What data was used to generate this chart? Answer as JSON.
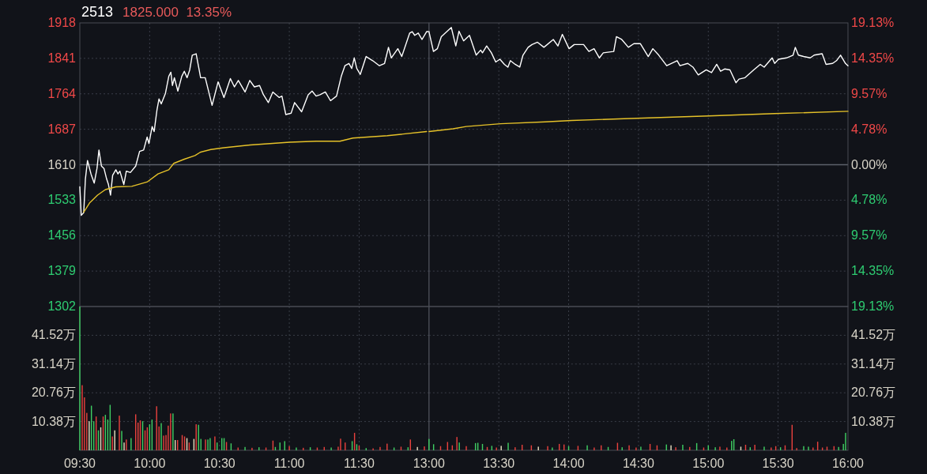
{
  "chart_data": [
    {
      "type": "line",
      "title": "2513",
      "subtitle": "1825.000  13.35%",
      "series": [
        {
          "color": "#ffffff",
          "x": [
            9.5,
            9.51,
            9.528,
            9.54,
            9.555,
            9.58,
            9.603,
            9.623,
            9.637,
            9.655,
            9.673,
            9.692,
            9.705,
            9.72,
            9.735,
            9.758,
            9.773,
            9.787,
            9.815,
            9.833,
            9.862,
            9.9,
            9.928,
            9.957,
            9.982,
            9.995,
            10.018,
            10.032,
            10.052,
            10.067,
            10.083,
            10.113,
            10.137,
            10.152,
            10.163,
            10.177,
            10.202,
            10.23,
            10.248,
            10.268,
            10.287,
            10.305,
            10.333,
            10.365,
            10.398,
            10.447,
            10.49,
            10.532,
            10.578,
            10.607,
            10.635,
            10.683,
            10.717,
            10.75,
            10.787,
            10.815,
            10.85,
            10.882,
            10.928,
            10.947,
            10.975,
            11.013,
            11.038,
            11.088,
            11.135,
            11.163,
            11.192,
            11.22,
            11.258,
            11.295,
            11.338,
            11.372,
            11.398,
            11.427,
            11.447,
            11.465,
            11.483,
            11.508,
            11.55,
            11.597,
            11.645,
            11.682,
            11.71,
            11.73,
            11.777,
            11.805,
            11.862,
            11.88,
            11.898,
            11.923,
            11.95,
            11.983,
            12
          ],
          "values": [
            1562,
            1500,
            1506,
            1579,
            1619,
            1590,
            1570,
            1602,
            1642,
            1607,
            1602,
            1579,
            1567,
            1544,
            1587,
            1599,
            1590,
            1596,
            1567,
            1596,
            1593,
            1607,
            1639,
            1642,
            1670,
            1656,
            1693,
            1682,
            1728,
            1753,
            1742,
            1765,
            1802,
            1811,
            1782,
            1799,
            1770,
            1802,
            1813,
            1799,
            1816,
            1848,
            1851,
            1799,
            1799,
            1739,
            1790,
            1756,
            1797,
            1779,
            1793,
            1768,
            1793,
            1779,
            1782,
            1762,
            1745,
            1768,
            1756,
            1759,
            1719,
            1722,
            1745,
            1725,
            1762,
            1770,
            1759,
            1762,
            1768,
            1749,
            1759,
            1802,
            1825,
            1830,
            1819,
            1842,
            1819,
            1806,
            1845,
            1836,
            1825,
            1830,
            1865,
            1842,
            1862,
            1845,
            1896,
            1899,
            1891,
            1896,
            1882,
            1899,
            1899
          ]
        },
        {
          "color": "#e6c229",
          "x": [
            9.528,
            9.57,
            9.627,
            9.683,
            9.758,
            9.872,
            9.985,
            10.06,
            10.137,
            10.173,
            10.248,
            10.325,
            10.362,
            10.438,
            10.532,
            10.72,
            11.003,
            11.192,
            11.362,
            11.455,
            11.702,
            11.983
          ],
          "values": [
            1507,
            1527,
            1544,
            1556,
            1562,
            1563,
            1573,
            1590,
            1599,
            1613,
            1622,
            1630,
            1637,
            1643,
            1647,
            1653,
            1659,
            1661,
            1661,
            1668,
            1673,
            1682
          ]
        }
      ],
      "xlim": [
        9.5,
        12
      ],
      "xticks": [
        9.5,
        10,
        10.5,
        11,
        11.5
      ],
      "ylim": [
        1302,
        1918
      ],
      "yticks": [
        1302,
        1379,
        1456,
        1533,
        1610,
        1687,
        1764,
        1841,
        1918
      ],
      "tick_labels": "y",
      "grid": true,
      "ref_lines": [
        {
          "axis": "y",
          "value": 1610
        }
      ]
    },
    {
      "type": "line",
      "series": [
        {
          "color": "#ffffff",
          "x": [
            13,
            13.032,
            13.06,
            13.088,
            13.117,
            13.16,
            13.192,
            13.215,
            13.248,
            13.29,
            13.338,
            13.37,
            13.383,
            13.413,
            13.447,
            13.478,
            13.508,
            13.54,
            13.565,
            13.583,
            13.617,
            13.65,
            13.673,
            13.71,
            13.738,
            13.777,
            13.823,
            13.89,
            13.923,
            13.955,
            14.003,
            14.04,
            14.107,
            14.145,
            14.182,
            14.22,
            14.248,
            14.323,
            14.342,
            14.38,
            14.428,
            14.467,
            14.513,
            14.57,
            14.603,
            14.645,
            14.702,
            14.777,
            14.797,
            14.853,
            14.89,
            14.928,
            14.985,
            15.023,
            15.06,
            15.088,
            15.117,
            15.155,
            15.198,
            15.22,
            15.263,
            15.325,
            15.372,
            15.4,
            15.457,
            15.475,
            15.503,
            15.56,
            15.607,
            15.623,
            15.645,
            15.682,
            15.73,
            15.758,
            15.815,
            15.843,
            15.89,
            15.918,
            15.947,
            15.982,
            16
          ],
          "values": [
            1899,
            1856,
            1862,
            1888,
            1896,
            1908,
            1868,
            1900,
            1879,
            1891,
            1848,
            1859,
            1853,
            1868,
            1853,
            1833,
            1839,
            1828,
            1822,
            1836,
            1828,
            1822,
            1848,
            1865,
            1871,
            1876,
            1865,
            1882,
            1868,
            1893,
            1862,
            1871,
            1871,
            1856,
            1862,
            1842,
            1853,
            1856,
            1888,
            1882,
            1865,
            1873,
            1873,
            1845,
            1862,
            1848,
            1825,
            1836,
            1825,
            1830,
            1822,
            1805,
            1816,
            1810,
            1828,
            1813,
            1818,
            1816,
            1788,
            1796,
            1799,
            1816,
            1828,
            1822,
            1842,
            1830,
            1839,
            1842,
            1848,
            1865,
            1848,
            1845,
            1842,
            1848,
            1851,
            1828,
            1830,
            1836,
            1848,
            1830,
            1825
          ]
        },
        {
          "color": "#e6c229",
          "x": [
            13,
            13.173,
            13.267,
            13.512,
            13.833,
            14.022,
            14.398,
            15.003,
            15.475,
            16
          ],
          "values": [
            1682,
            1688,
            1693,
            1699,
            1703,
            1706,
            1710,
            1716,
            1721,
            1726
          ]
        }
      ],
      "xlim": [
        13,
        16
      ],
      "xticks": [
        13,
        13.5,
        14,
        14.5,
        15,
        15.5,
        16
      ],
      "ylim": [
        1302,
        1918
      ],
      "y2lim": [
        -19.13,
        19.13
      ],
      "y2ticks": [
        {
          "value": -19.13,
          "label": "19.13%"
        },
        {
          "value": -14.35,
          "label": "14.35%"
        },
        {
          "value": -9.57,
          "label": "9.57%"
        },
        {
          "value": -4.78,
          "label": "4.78%"
        },
        {
          "value": 0,
          "label": "0.00%"
        },
        {
          "value": 4.78,
          "label": "4.78%"
        },
        {
          "value": 9.57,
          "label": "9.57%"
        },
        {
          "value": 14.35,
          "label": "14.35%"
        },
        {
          "value": 19.13,
          "label": "19.13%"
        }
      ],
      "tick_labels": "y",
      "grid": true,
      "ref_lines": [
        {
          "axis": "y",
          "value": 1610
        }
      ]
    },
    {
      "type": "bar",
      "x": [
        9.5,
        9.517,
        9.533,
        9.55,
        9.567,
        9.583,
        9.6,
        9.617,
        9.633,
        9.65,
        9.667,
        9.683,
        9.7,
        9.717,
        9.733,
        9.75,
        9.783,
        9.8,
        9.817,
        9.833,
        9.867,
        9.9,
        9.917,
        9.933,
        9.95,
        9.967,
        9.983,
        10,
        10.017,
        10.05,
        10.067,
        10.083,
        10.1,
        10.117,
        10.133,
        10.15,
        10.167,
        10.183,
        10.2,
        10.233,
        10.25,
        10.267,
        10.283,
        10.317,
        10.333,
        10.35,
        10.367,
        10.4,
        10.417,
        10.433,
        10.467,
        10.483,
        10.517,
        10.533,
        10.55,
        10.583,
        10.633,
        10.683,
        10.733,
        10.783,
        10.833,
        10.883,
        10.9,
        10.933,
        10.967,
        11,
        11.05,
        11.1,
        11.15,
        11.2,
        11.25,
        11.3,
        11.35,
        11.367,
        11.4,
        11.45,
        11.467,
        11.483,
        11.5,
        11.55,
        11.6,
        11.65,
        11.7,
        11.75,
        11.8,
        11.85,
        11.867,
        11.917,
        11.967
      ],
      "values": [
        51.9,
        23.5,
        19.1,
        13.5,
        10.5,
        16.1,
        10.5,
        12.2,
        7.2,
        8.3,
        12.2,
        12.8,
        11.1,
        16.4,
        5.0,
        7.2,
        12.5,
        7.0,
        2.8,
        3.9,
        4.4,
        13.0,
        10.0,
        10.8,
        10.5,
        7.2,
        8.3,
        9.4,
        11.1,
        15.9,
        8.6,
        9.8,
        5.3,
        5.5,
        8.9,
        13.3,
        13.3,
        3.7,
        3.7,
        5.5,
        5.0,
        4.4,
        2.8,
        4.1,
        9.4,
        9.2,
        4.1,
        3.9,
        3.9,
        4.4,
        5.0,
        2.8,
        4.4,
        4.4,
        3.0,
        2.5,
        1.0,
        1.2,
        0.9,
        1.1,
        1.0,
        3.5,
        1.2,
        2.8,
        3.3,
        1.5,
        1.0,
        0.9,
        1.1,
        1.0,
        1.2,
        1.0,
        1.3,
        4.2,
        2.8,
        3.3,
        6.3,
        2.2,
        1.7,
        0.8,
        0.7,
        1.2,
        2.4,
        1.0,
        1.3,
        1.1,
        3.9,
        1.2,
        1.4
      ],
      "colors": [
        "#3fcf63",
        "#e8413d",
        "#e8413d",
        "#e8413d",
        "#e8e0c0",
        "#3fcf63",
        "#3fcf63",
        "#e8413d",
        "#3fcf63",
        "#e8e0c0",
        "#e8413d",
        "#3fcf63",
        "#3fcf63",
        "#3fcf63",
        "#e8413d",
        "#e8e0c0",
        "#e8413d",
        "#3fcf63",
        "#e8e0c0",
        "#e8413d",
        "#3fcf63",
        "#e8413d",
        "#e8413d",
        "#e8413d",
        "#3fcf63",
        "#e8413d",
        "#e8413d",
        "#3fcf63",
        "#3fcf63",
        "#e8413d",
        "#e8413d",
        "#3fcf63",
        "#e8413d",
        "#e8413d",
        "#e8413d",
        "#e8413d",
        "#3fcf63",
        "#e8e0c0",
        "#e8413d",
        "#e8413d",
        "#e8413d",
        "#e8e0c0",
        "#e8413d",
        "#e8e0c0",
        "#e8413d",
        "#3fcf63",
        "#3fcf63",
        "#e8413d",
        "#3fcf63",
        "#3fcf63",
        "#e8413d",
        "#3fcf63",
        "#3fcf63",
        "#3fcf63",
        "#e8413d",
        "#3fcf63",
        "#e8413d",
        "#3fcf63",
        "#e8413d",
        "#3fcf63",
        "#e8413d",
        "#e8413d",
        "#3fcf63",
        "#3fcf63",
        "#3fcf63",
        "#e8413d",
        "#3fcf63",
        "#e8413d",
        "#3fcf63",
        "#e8413d",
        "#e8413d",
        "#3fcf63",
        "#e8413d",
        "#e8413d",
        "#e8413d",
        "#3fcf63",
        "#e8413d",
        "#3fcf63",
        "#e8413d",
        "#3fcf63",
        "#e8413d",
        "#e8413d",
        "#e8413d",
        "#3fcf63",
        "#e8413d",
        "#3fcf63",
        "#e8413d",
        "#e8e0c0",
        "#e8413d"
      ],
      "xlim": [
        9.5,
        12
      ],
      "xticks": [
        {
          "value": 9.5,
          "label": "09:30"
        },
        {
          "value": 10,
          "label": "10:00"
        },
        {
          "value": 10.5,
          "label": "10:30"
        },
        {
          "value": 11,
          "label": "11:00"
        },
        {
          "value": 11.5,
          "label": "11:30"
        }
      ],
      "ylim": [
        0,
        51.9
      ],
      "yticks": [
        {
          "value": 10.38,
          "label": "10.38万"
        },
        {
          "value": 20.76,
          "label": "20.76万"
        },
        {
          "value": 31.14,
          "label": "31.14万"
        },
        {
          "value": 41.52,
          "label": "41.52万"
        }
      ],
      "grid": true
    },
    {
      "type": "bar",
      "x": [
        13,
        13.033,
        13.083,
        13.133,
        13.167,
        13.2,
        13.217,
        13.267,
        13.333,
        13.35,
        13.383,
        13.417,
        13.45,
        13.483,
        13.517,
        13.567,
        13.617,
        13.667,
        13.733,
        13.783,
        13.85,
        13.883,
        13.933,
        13.967,
        14,
        14.067,
        14.133,
        14.183,
        14.233,
        14.283,
        14.35,
        14.383,
        14.433,
        14.483,
        14.517,
        14.583,
        14.633,
        14.7,
        14.733,
        14.767,
        14.817,
        14.867,
        14.917,
        14.967,
        15,
        15.05,
        15.083,
        15.133,
        15.167,
        15.183,
        15.233,
        15.267,
        15.3,
        15.333,
        15.4,
        15.45,
        15.483,
        15.517,
        15.55,
        15.6,
        15.633,
        15.683,
        15.717,
        15.75,
        15.783,
        15.817,
        15.85,
        15.9,
        15.933,
        15.967,
        15.983
      ],
      "values": [
        4.1,
        2.2,
        1.5,
        3.0,
        1.8,
        4.8,
        2.8,
        1.5,
        2.6,
        2.7,
        2.3,
        1.2,
        1.6,
        1.0,
        1.6,
        2.7,
        1.1,
        2.0,
        1.8,
        1.3,
        1.5,
        1.0,
        2.3,
        2.1,
        1.5,
        1.6,
        1.8,
        1.0,
        1.8,
        1.2,
        2.7,
        1.1,
        1.8,
        1.0,
        1.3,
        2.3,
        1.8,
        2.1,
        1.8,
        1.1,
        2.0,
        1.2,
        2.6,
        1.0,
        1.8,
        1.1,
        1.3,
        1.0,
        3.4,
        4.0,
        1.3,
        2.0,
        1.1,
        2.0,
        1.3,
        1.0,
        1.5,
        1.1,
        1.8,
        9.2,
        0.8,
        1.5,
        1.3,
        1.0,
        3.1,
        1.0,
        1.3,
        1.5,
        1.2,
        2.3,
        6.3
      ],
      "colors": [
        "#3fcf63",
        "#3fcf63",
        "#e8413d",
        "#e8413d",
        "#e8413d",
        "#e8413d",
        "#3fcf63",
        "#e8413d",
        "#3fcf63",
        "#3fcf63",
        "#3fcf63",
        "#e8413d",
        "#3fcf63",
        "#e8413d",
        "#e8e0c0",
        "#3fcf63",
        "#e8413d",
        "#e8413d",
        "#e8413d",
        "#e8e0c0",
        "#e8413d",
        "#3fcf63",
        "#e8413d",
        "#e8413d",
        "#3fcf63",
        "#e8413d",
        "#3fcf63",
        "#e8413d",
        "#e8413d",
        "#3fcf63",
        "#e8413d",
        "#3fcf63",
        "#e8413d",
        "#e8413d",
        "#3fcf63",
        "#e8413d",
        "#e8413d",
        "#3fcf63",
        "#e8e0c0",
        "#e8413d",
        "#3fcf63",
        "#e8413d",
        "#3fcf63",
        "#e8413d",
        "#3fcf63",
        "#3fcf63",
        "#e8413d",
        "#e8413d",
        "#3fcf63",
        "#3fcf63",
        "#e8e0c0",
        "#e8413d",
        "#3fcf63",
        "#e8413d",
        "#3fcf63",
        "#e8413d",
        "#e8413d",
        "#3fcf63",
        "#e8413d",
        "#e8413d",
        "#e8413d",
        "#3fcf63",
        "#3fcf63",
        "#e8413d",
        "#e8413d",
        "#e8413d",
        "#e8413d",
        "#e8413d",
        "#3fcf63",
        "#3fcf63",
        "#3fcf63"
      ],
      "xlim": [
        13,
        16
      ],
      "xticks": [
        {
          "value": 13,
          "label": "13:00"
        },
        {
          "value": 13.5,
          "label": "13:30"
        },
        {
          "value": 14,
          "label": "14:00"
        },
        {
          "value": 14.5,
          "label": "14:30"
        },
        {
          "value": 15,
          "label": "15:00"
        },
        {
          "value": 15.5,
          "label": "15:30"
        },
        {
          "value": 16,
          "label": "16:00"
        }
      ],
      "ylim": [
        0,
        51.9
      ],
      "y2lim": [
        0,
        51.9
      ],
      "y2ticks": [
        {
          "value": 10.38,
          "label": "10.38万"
        },
        {
          "value": 20.76,
          "label": "20.76万"
        },
        {
          "value": 31.14,
          "label": "31.14万"
        },
        {
          "value": 41.52,
          "label": "41.52万"
        }
      ],
      "grid": true
    }
  ]
}
